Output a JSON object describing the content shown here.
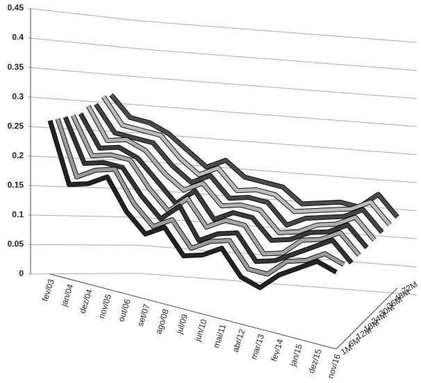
{
  "chart_data": {
    "type": "ribbon3d",
    "categories": [
      "fev/03",
      "jan/04",
      "dez/04",
      "nov/05",
      "out/06",
      "set/07",
      "ago/08",
      "jul/09",
      "jun/10",
      "mai/11",
      "abr/12",
      "mar/13",
      "fev/14",
      "jan/15",
      "dez/15",
      "nov/16"
    ],
    "series": [
      {
        "name": "1M",
        "color": "#222222",
        "values": [
          0.26,
          0.16,
          0.17,
          0.19,
          0.14,
          0.11,
          0.13,
          0.09,
          0.1,
          0.12,
          0.08,
          0.07,
          0.1,
          0.12,
          0.14,
          0.13
        ]
      },
      {
        "name": "6M",
        "color": "#9a9a9a",
        "values": [
          0.25,
          0.16,
          0.18,
          0.19,
          0.14,
          0.11,
          0.13,
          0.09,
          0.11,
          0.12,
          0.08,
          0.08,
          0.11,
          0.12,
          0.14,
          0.13
        ]
      },
      {
        "name": "12M",
        "color": "#333333",
        "values": [
          0.24,
          0.17,
          0.18,
          0.18,
          0.14,
          0.11,
          0.14,
          0.09,
          0.11,
          0.12,
          0.08,
          0.09,
          0.11,
          0.13,
          0.15,
          0.12
        ]
      },
      {
        "name": "18M",
        "color": "#a5a5a5",
        "values": [
          0.23,
          0.17,
          0.18,
          0.18,
          0.14,
          0.11,
          0.14,
          0.1,
          0.12,
          0.12,
          0.08,
          0.09,
          0.12,
          0.13,
          0.15,
          0.12
        ]
      },
      {
        "name": "24M",
        "color": "#3a3a3a",
        "values": [
          0.22,
          0.17,
          0.18,
          0.17,
          0.14,
          0.11,
          0.14,
          0.1,
          0.12,
          0.12,
          0.09,
          0.1,
          0.12,
          0.13,
          0.15,
          0.12
        ]
      },
      {
        "name": "30M",
        "color": "#b0b0b0",
        "values": [
          0.22,
          0.17,
          0.18,
          0.17,
          0.14,
          0.12,
          0.14,
          0.11,
          0.12,
          0.12,
          0.09,
          0.1,
          0.12,
          0.13,
          0.15,
          0.12
        ]
      },
      {
        "name": "36M",
        "color": "#444444",
        "values": [
          0.21,
          0.17,
          0.17,
          0.17,
          0.14,
          0.12,
          0.14,
          0.11,
          0.12,
          0.12,
          0.09,
          0.11,
          0.12,
          0.13,
          0.15,
          0.12
        ]
      },
      {
        "name": "48M",
        "color": "#bbbbbb",
        "values": [
          0.21,
          0.17,
          0.17,
          0.17,
          0.14,
          0.12,
          0.14,
          0.11,
          0.12,
          0.12,
          0.1,
          0.11,
          0.12,
          0.13,
          0.15,
          0.12
        ]
      },
      {
        "name": "72M",
        "color": "#4a4a4a",
        "values": [
          0.2,
          0.17,
          0.17,
          0.16,
          0.14,
          0.12,
          0.14,
          0.12,
          0.12,
          0.12,
          0.1,
          0.11,
          0.12,
          0.12,
          0.15,
          0.12
        ]
      }
    ],
    "ylim": [
      0,
      0.45
    ],
    "yticks": [
      0,
      0.05,
      0.1,
      0.15,
      0.2,
      0.25,
      0.3,
      0.35,
      0.4,
      0.45
    ],
    "grid": true
  }
}
